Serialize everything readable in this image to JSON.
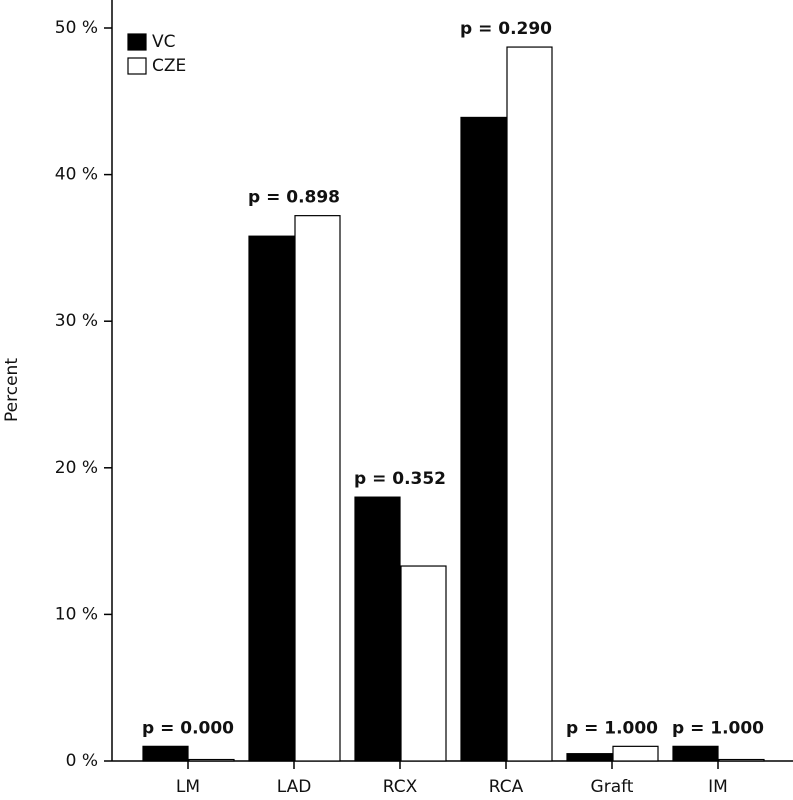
{
  "chart_data": {
    "type": "bar",
    "y_label": "Percent",
    "categories": [
      "LM",
      "LAD",
      "RCX",
      "RCA",
      "Graft",
      "IM"
    ],
    "series": [
      {
        "name": "VC",
        "color": "#000000",
        "values": [
          1.0,
          35.8,
          18.0,
          43.9,
          0.5,
          1.0
        ]
      },
      {
        "name": "CZE",
        "color": "#ffffff",
        "values": [
          0.1,
          37.2,
          13.3,
          48.7,
          1.0,
          0.1
        ]
      }
    ],
    "annotations": [
      "p = 0.000",
      "p = 0.898",
      "p = 0.352",
      "p = 0.290",
      "p = 1.000",
      "p = 1.000"
    ],
    "ylim": [
      0,
      50
    ],
    "yticks": [
      {
        "value": 0,
        "label": "0 %"
      },
      {
        "value": 10,
        "label": "10 %"
      },
      {
        "value": 20,
        "label": "20 %"
      },
      {
        "value": 30,
        "label": "30 %"
      },
      {
        "value": 40,
        "label": "40 %"
      },
      {
        "value": 50,
        "label": "50 %"
      }
    ],
    "grid": false,
    "legend": "top-left"
  }
}
